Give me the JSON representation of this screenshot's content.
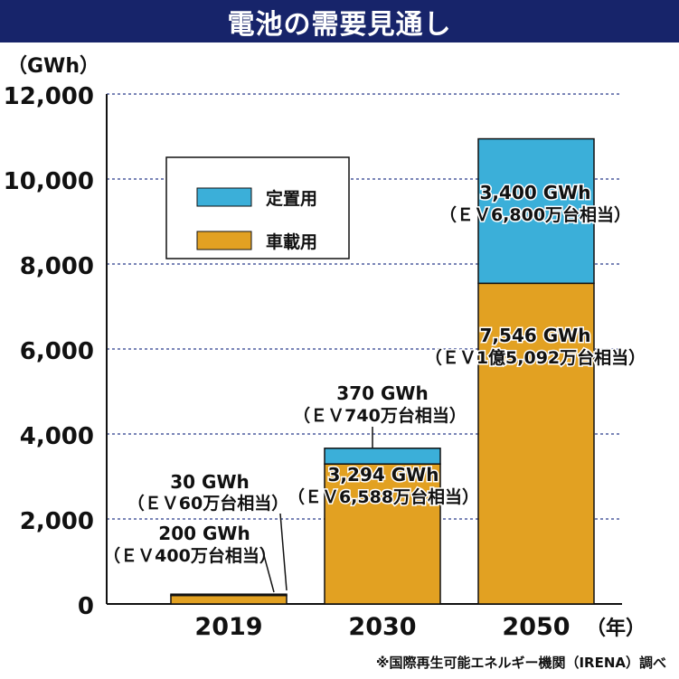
{
  "chart_data": {
    "type": "bar",
    "stacked": true,
    "title": "電池の需要見通し",
    "ylabel": "（GWh）",
    "xlabel_suffix": "（年）",
    "ylim": [
      0,
      12000
    ],
    "yticks": [
      0,
      2000,
      4000,
      6000,
      8000,
      10000,
      12000
    ],
    "ytick_labels": [
      "0",
      "2,000",
      "4,000",
      "6,000",
      "8,000",
      "10,000",
      "12,000"
    ],
    "categories": [
      "2019",
      "2030",
      "2050"
    ],
    "colors": {
      "stationary": "#3bafd9",
      "vehicle": "#e2a122"
    },
    "series": [
      {
        "name": "車載用",
        "key": "vehicle",
        "values": [
          200,
          3294,
          7546
        ]
      },
      {
        "name": "定置用",
        "key": "stationary",
        "values": [
          30,
          370,
          3400
        ]
      }
    ],
    "legend": [
      {
        "label": "定置用",
        "key": "stationary"
      },
      {
        "label": "車載用",
        "key": "vehicle"
      }
    ],
    "annotations": {
      "vehicle": [
        {
          "line1": "200 GWh",
          "line2": "（ＥＶ400万台相当）"
        },
        {
          "line1": "3,294 GWh",
          "line2": "（ＥＶ6,588万台相当）"
        },
        {
          "line1": "7,546 GWh",
          "line2": "（ＥＶ1億5,092万台相当）"
        }
      ],
      "stationary": [
        {
          "line1": "30 GWh",
          "line2": "（ＥＶ60万台相当）"
        },
        {
          "line1": "370 GWh",
          "line2": "（ＥＶ740万台相当）"
        },
        {
          "line1": "3,400 GWh",
          "line2": "（ＥＶ6,800万台相当）"
        }
      ]
    }
  },
  "source_note": "※国際再生可能エネルギー機関（IRENA）調べ"
}
